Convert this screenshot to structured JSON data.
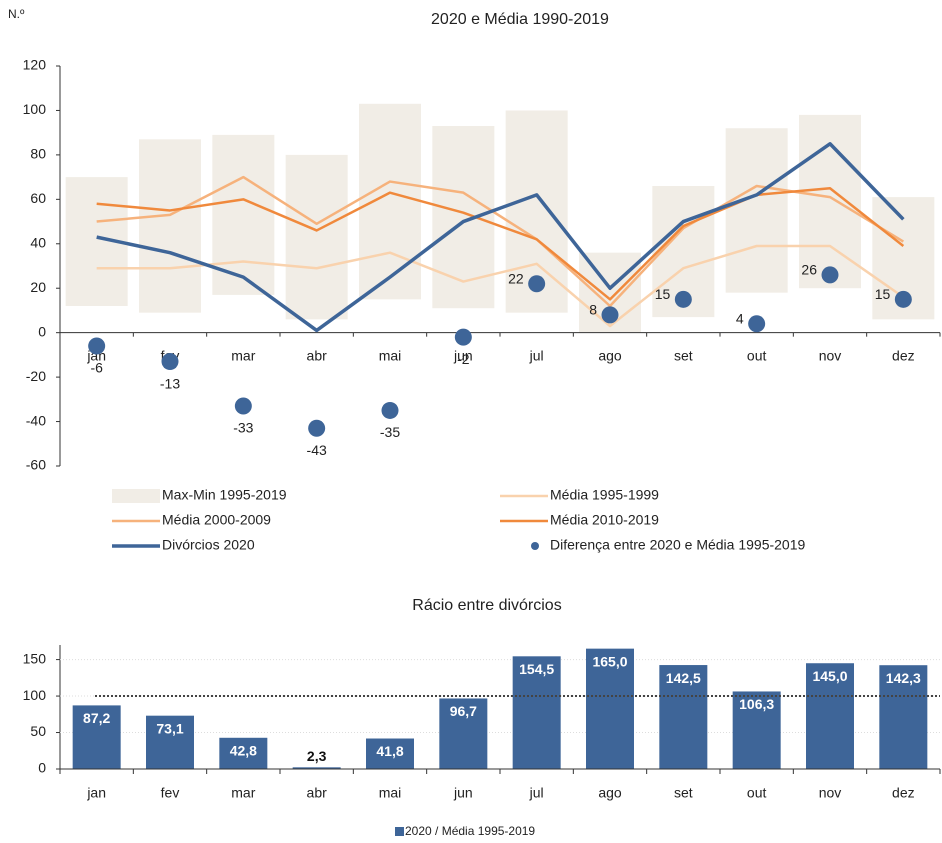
{
  "chart_data": [
    {
      "type": "line",
      "title": "2020 e Média 1990-2019",
      "ylabel": "N.º",
      "categories": [
        "jan",
        "fev",
        "mar",
        "abr",
        "mai",
        "jun",
        "jul",
        "ago",
        "set",
        "out",
        "nov",
        "dez"
      ],
      "ylim": [
        -60,
        120
      ],
      "yticks": [
        -60,
        -40,
        -20,
        0,
        20,
        40,
        60,
        80,
        100,
        120
      ],
      "series": [
        {
          "name": "Max-Min 1995-2019",
          "kind": "range",
          "color": "#f1ede6",
          "low": [
            12,
            9,
            17,
            6,
            15,
            11,
            9,
            0,
            7,
            18,
            20,
            6
          ],
          "high": [
            70,
            87,
            89,
            80,
            103,
            93,
            100,
            36,
            66,
            92,
            98,
            61
          ]
        },
        {
          "name": "Média 1995-1999",
          "kind": "line",
          "color": "#f9d2ad",
          "width": 2.5,
          "values": [
            29,
            29,
            32,
            29,
            36,
            23,
            31,
            3,
            29,
            39,
            39,
            16
          ]
        },
        {
          "name": "Média 2000-2009",
          "kind": "line",
          "color": "#f6b27c",
          "width": 2.5,
          "values": [
            50,
            53,
            70,
            49,
            68,
            63,
            42,
            12,
            47,
            66,
            61,
            41
          ]
        },
        {
          "name": "Média 2010-2019",
          "kind": "line",
          "color": "#f0893c",
          "width": 2.5,
          "values": [
            58,
            55,
            60,
            46,
            63,
            54,
            42,
            15,
            48,
            62,
            65,
            39
          ]
        },
        {
          "name": "Divórcios 2020",
          "kind": "line",
          "color": "#3e6598",
          "width": 3.5,
          "values": [
            43,
            36,
            25,
            1,
            25,
            50,
            62,
            20,
            50,
            62,
            85,
            51
          ]
        },
        {
          "name": "Diferença entre 2020 e Média 1995-2019",
          "kind": "dots",
          "color": "#3e6598",
          "values": [
            -6,
            -13,
            -33,
            -43,
            -35,
            -2,
            22,
            8,
            15,
            4,
            26,
            15
          ]
        }
      ]
    },
    {
      "type": "bar",
      "title": "Rácio entre divórcios",
      "categories": [
        "jan",
        "fev",
        "mar",
        "abr",
        "mai",
        "jun",
        "jul",
        "ago",
        "set",
        "out",
        "nov",
        "dez"
      ],
      "ylim": [
        0,
        170
      ],
      "yticks": [
        0,
        50,
        100,
        150
      ],
      "grid": true,
      "reference_line": 100,
      "series": [
        {
          "name": "2020 / Média 1995-2019",
          "color": "#3e6598",
          "values": [
            87.2,
            73.1,
            42.8,
            2.3,
            41.8,
            96.7,
            154.5,
            165.0,
            142.5,
            106.3,
            145.0,
            142.3
          ],
          "value_labels": [
            "87,2",
            "73,1",
            "42,8",
            "2,3",
            "41,8",
            "96,7",
            "154,5",
            "165,0",
            "142,5",
            "106,3",
            "145,0",
            "142,3"
          ]
        }
      ]
    }
  ]
}
